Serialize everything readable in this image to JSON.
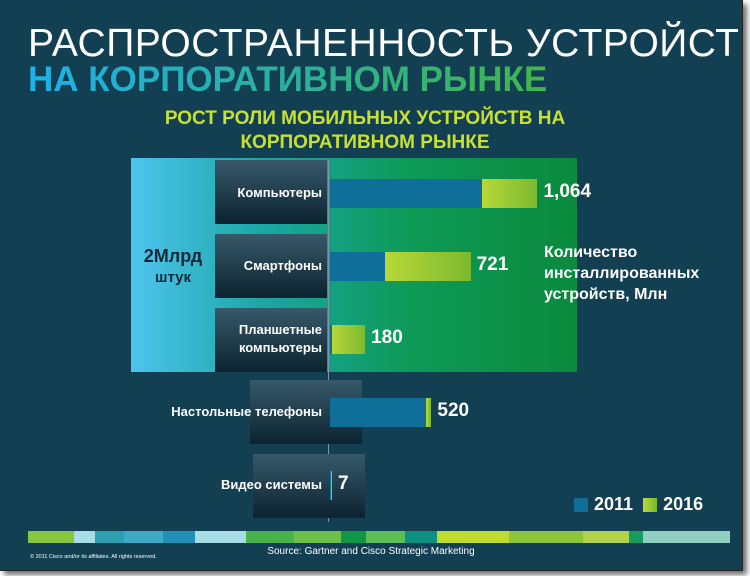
{
  "title_line1": "РАСПРОСТРАНЕННОСТЬ УСТРОЙСТВ",
  "title_line2": "НА КОРПОРАТИВНОМ РЫНКЕ",
  "chart_data": {
    "type": "bar",
    "orientation": "horizontal",
    "stacked": true,
    "title_line1": "РОСТ РОЛИ МОБИЛЬНЫХ УСТРОЙСТВ НА",
    "title_line2": "КОРПОРАТИВНОМ РЫНКЕ",
    "categories": [
      "Компьютеры",
      "Смартфоны",
      "Планшетные компьютеры",
      "Настольные телефоны",
      "Видео системы"
    ],
    "category_lines": [
      [
        "Компьютеры"
      ],
      [
        "Смартфоны"
      ],
      [
        "Планшетные",
        "компьютеры"
      ],
      [
        "Настольные телефоны"
      ],
      [
        "Видео системы"
      ]
    ],
    "series": [
      {
        "name": "2011",
        "color": "#0f6f98",
        "values": [
          780,
          280,
          10,
          490,
          4
        ]
      },
      {
        "name": "2016",
        "color": "#9cc934",
        "values": [
          284,
          441,
          170,
          30,
          3
        ]
      }
    ],
    "totals": [
      1064,
      721,
      180,
      520,
      7
    ],
    "total_labels": [
      "1,064",
      "721",
      "180",
      "520",
      "7"
    ],
    "annotation_lines": [
      "Количество",
      "инсталлированных",
      "устройств, Млн"
    ],
    "highlight_label_line1": "2Млрд",
    "highlight_label_line2": "штук",
    "legend_position": "bottom-right",
    "xlim": [
      0,
      1100
    ]
  },
  "footer": {
    "source": "Source: Gartner and Cisco Strategic Marketing",
    "copyright": "© 2011 Cisco and/or its affiliates. All rights reserved."
  },
  "stripe_colors": [
    "#88c540",
    "#a8dde6",
    "#2d9fb0",
    "#3fa8c4",
    "#2290b6",
    "#a8dde6",
    "#46b44a",
    "#6cc04a",
    "#0f9747",
    "#5bbf55",
    "#0e8f82",
    "#c2dc2c",
    "#8cc43c",
    "#b2d34b",
    "#169c60",
    "#8fd0c0"
  ]
}
